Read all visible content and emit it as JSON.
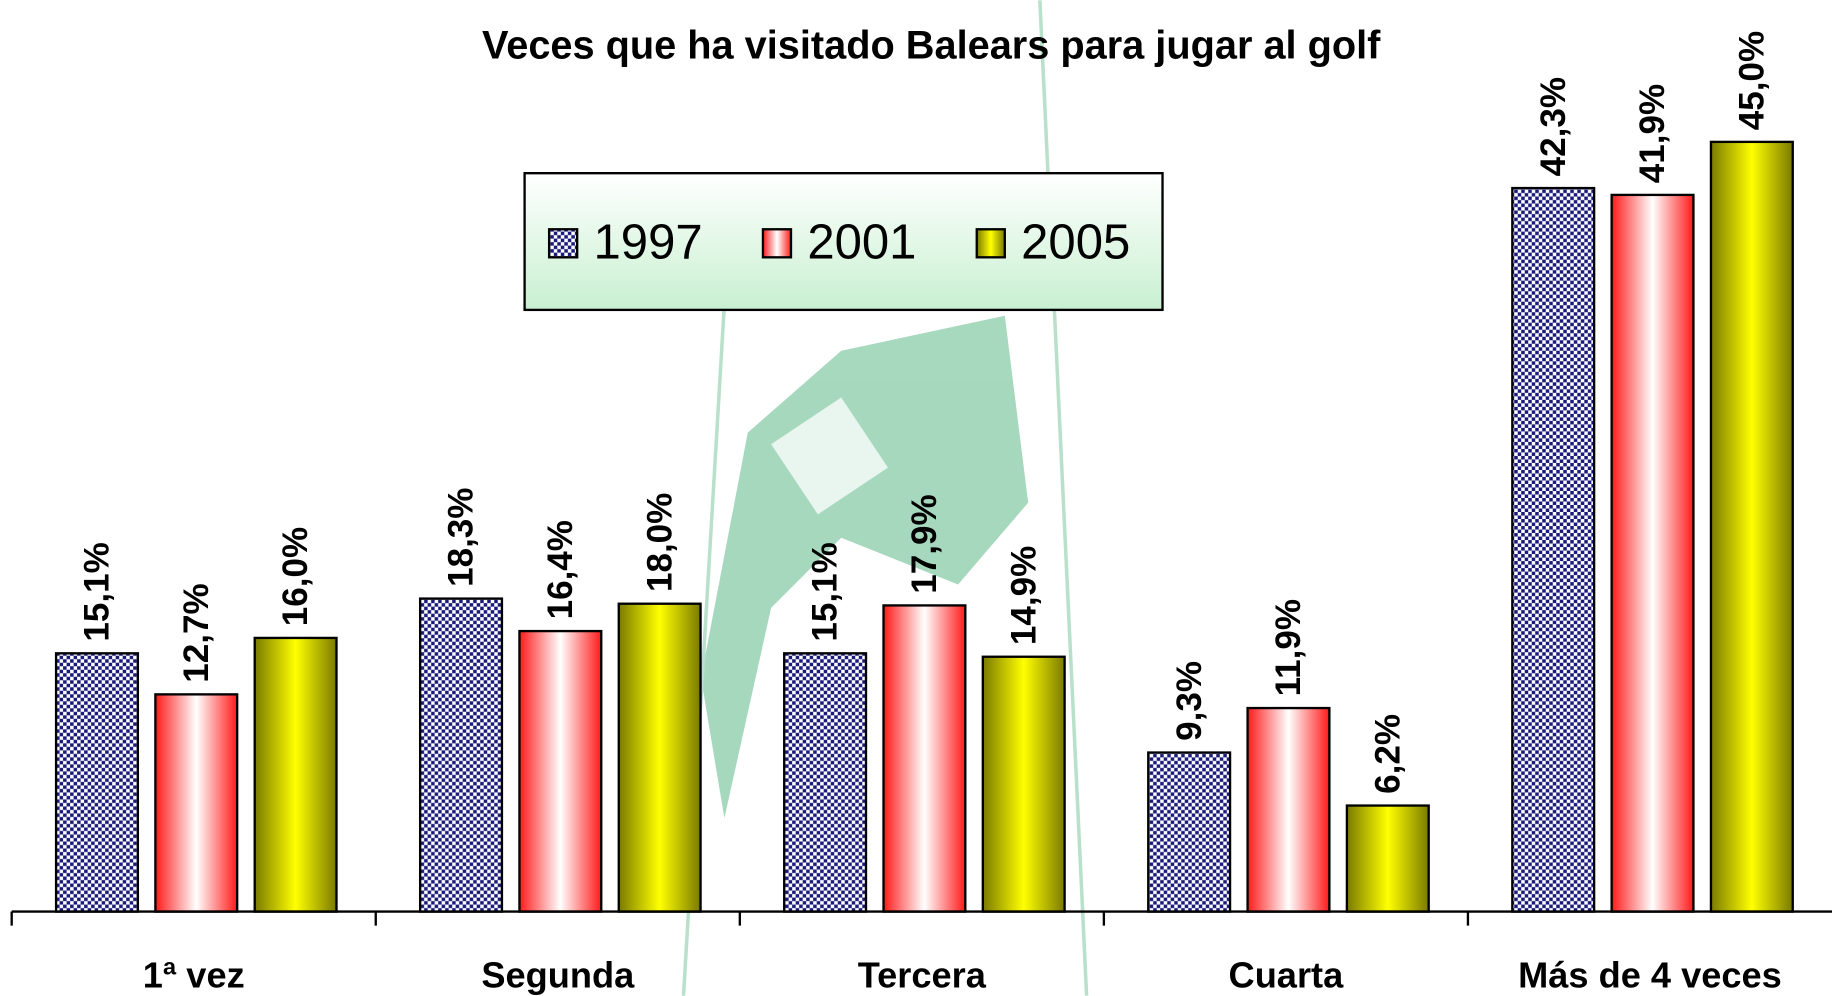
{
  "chart_data": {
    "type": "bar",
    "title": "Veces que ha visitado Balears para jugar al golf",
    "categories": [
      "1ª vez",
      "Segunda",
      "Tercera",
      "Cuarta",
      "Más de 4 veces"
    ],
    "series": [
      {
        "name": "1997",
        "color": "#1a1a7a",
        "values": [
          15.1,
          18.3,
          15.1,
          9.3,
          42.3
        ],
        "value_labels": [
          "15,1%",
          "18,3%",
          "15,1%",
          "9,3%",
          "42,3%"
        ]
      },
      {
        "name": "2001",
        "color": "#ff2020",
        "values": [
          12.7,
          16.4,
          17.9,
          11.9,
          41.9
        ],
        "value_labels": [
          "12,7%",
          "16,4%",
          "17,9%",
          "11,9%",
          "41,9%"
        ]
      },
      {
        "name": "2005",
        "color": "#8a8a00",
        "values": [
          16.0,
          18.0,
          14.9,
          6.2,
          45.0
        ],
        "value_labels": [
          "16,0%",
          "18,0%",
          "14,9%",
          "6,2%",
          "45,0%"
        ]
      }
    ]
  }
}
